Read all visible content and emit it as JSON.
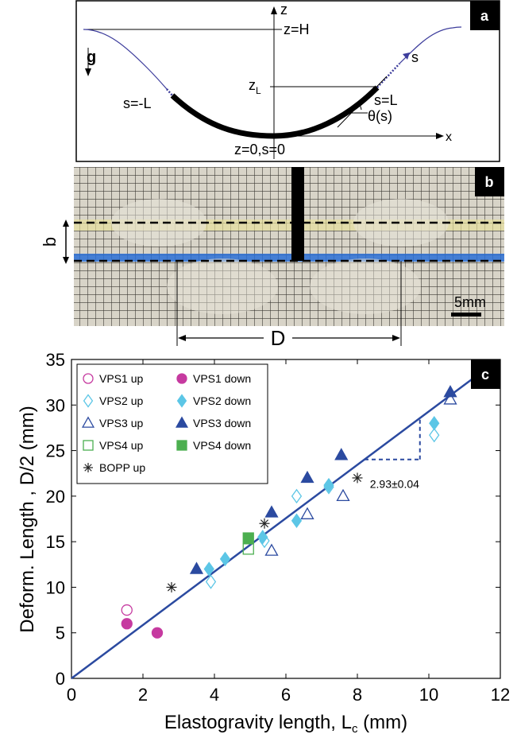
{
  "panel_a": {
    "badge": "a",
    "labels": {
      "z_axis": "z",
      "x_axis": "x",
      "z_top": "z=H",
      "g": "g",
      "zL_main": "z",
      "zL_sub": "L",
      "s_right_end": "s=L",
      "s_left_end": "s=-L",
      "s": "s",
      "theta": "θ(s)",
      "origin": "z=0,s=0"
    }
  },
  "panel_b": {
    "badge": "b",
    "label_b": "b",
    "label_D": "D",
    "scale_label": "5mm"
  },
  "panel_c": {
    "badge": "c",
    "slope_label": "2.93±0.04",
    "chart_data": {
      "type": "scatter",
      "xlabel_main": "Elastogravity length, L",
      "xlabel_sub": "c",
      "xlabel_unit": " (mm)",
      "ylabel": "Deform. Length , D/2 (mm)",
      "xlim": [
        0,
        12
      ],
      "ylim": [
        0,
        35
      ],
      "xticks": [
        0,
        2,
        4,
        6,
        8,
        10,
        12
      ],
      "yticks": [
        0,
        5,
        10,
        15,
        20,
        25,
        30,
        35
      ],
      "fit_line": {
        "slope": 2.93,
        "intercept": 0,
        "x_range": [
          0,
          11.5
        ]
      },
      "legend_position": "top-left",
      "series": [
        {
          "name": "VPS1 up",
          "marker": "circle",
          "filled": false,
          "color": "#c63aa0",
          "points": [
            [
              1.55,
              7.5
            ]
          ]
        },
        {
          "name": "VPS1 down",
          "marker": "circle",
          "filled": true,
          "color": "#c63aa0",
          "points": [
            [
              1.55,
              6.0
            ],
            [
              2.4,
              5.0
            ]
          ]
        },
        {
          "name": "VPS2 up",
          "marker": "diamond",
          "filled": false,
          "color": "#5cc6e6",
          "points": [
            [
              3.9,
              10.6
            ],
            [
              5.4,
              15.1
            ],
            [
              6.3,
              20.0
            ],
            [
              7.2,
              21.0
            ],
            [
              10.15,
              26.7
            ]
          ]
        },
        {
          "name": "VPS2 down",
          "marker": "diamond",
          "filled": true,
          "color": "#5cc6e6",
          "points": [
            [
              3.85,
              12.0
            ],
            [
              4.3,
              13.1
            ],
            [
              5.35,
              15.5
            ],
            [
              6.3,
              17.3
            ],
            [
              7.2,
              21.2
            ],
            [
              10.15,
              28.0
            ]
          ]
        },
        {
          "name": "VPS3 up",
          "marker": "triangle",
          "filled": false,
          "color": "#2b4aa0",
          "points": [
            [
              5.6,
              14.0
            ],
            [
              6.6,
              18.0
            ],
            [
              7.6,
              20.0
            ],
            [
              10.6,
              30.6
            ]
          ]
        },
        {
          "name": "VPS3 down",
          "marker": "triangle",
          "filled": true,
          "color": "#2b4aa0",
          "points": [
            [
              3.5,
              12.0
            ],
            [
              5.6,
              18.2
            ],
            [
              6.6,
              22.0
            ],
            [
              7.55,
              24.5
            ],
            [
              10.6,
              31.4
            ]
          ]
        },
        {
          "name": "VPS4 up",
          "marker": "square",
          "filled": false,
          "color": "#4caf50",
          "points": [
            [
              4.95,
              14.2
            ]
          ]
        },
        {
          "name": "VPS4 down",
          "marker": "square",
          "filled": true,
          "color": "#4caf50",
          "points": [
            [
              4.95,
              15.4
            ]
          ]
        },
        {
          "name": "BOPP up",
          "marker": "star",
          "filled": false,
          "color": "#222222",
          "points": [
            [
              2.8,
              10.0
            ],
            [
              5.4,
              17.0
            ],
            [
              8.0,
              22.0
            ]
          ]
        }
      ]
    }
  }
}
